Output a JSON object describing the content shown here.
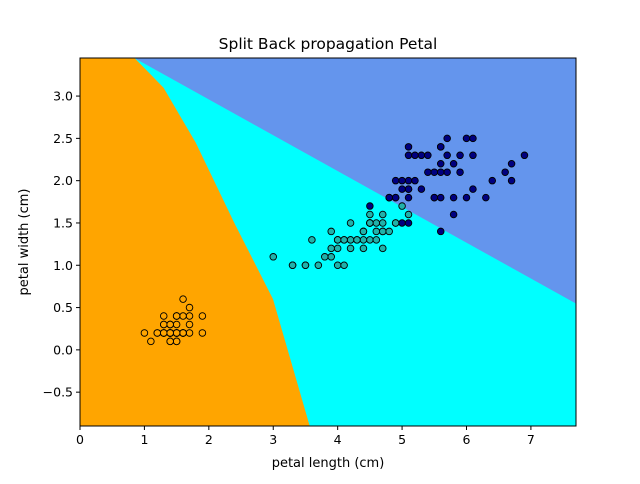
{
  "chart_data": {
    "type": "scatter",
    "title": "Split Back propagation Petal",
    "xlabel": "petal length (cm)",
    "ylabel": "petal width (cm)",
    "xlim": [
      0,
      7.7
    ],
    "ylim": [
      -0.9,
      3.45
    ],
    "xticks": [
      0,
      1,
      2,
      3,
      4,
      5,
      6,
      7
    ],
    "yticks": [
      -0.5,
      0.0,
      0.5,
      1.0,
      1.5,
      2.0,
      2.5,
      3.0
    ],
    "xtick_labels": [
      "0",
      "1",
      "2",
      "3",
      "4",
      "5",
      "6",
      "7"
    ],
    "ytick_labels": [
      "−0.5",
      "0.0",
      "0.5",
      "1.0",
      "1.5",
      "2.0",
      "2.5",
      "3.0"
    ],
    "grid": false,
    "regions": [
      {
        "color": "#ffa500",
        "polygon": [
          [
            0,
            3.45
          ],
          [
            0.85,
            3.45
          ],
          [
            1.3,
            3.1
          ],
          [
            1.8,
            2.45
          ],
          [
            2.4,
            1.5
          ],
          [
            3.0,
            0.6
          ],
          [
            3.57,
            -0.9
          ],
          [
            0,
            -0.9
          ]
        ]
      },
      {
        "color": "#00ffff",
        "polygon": [
          [
            0.85,
            3.45
          ],
          [
            1.3,
            3.1
          ],
          [
            1.8,
            2.45
          ],
          [
            2.4,
            1.5
          ],
          [
            3.0,
            0.6
          ],
          [
            3.57,
            -0.9
          ],
          [
            7.7,
            -0.9
          ],
          [
            7.7,
            0.55
          ]
        ]
      },
      {
        "color": "#6495ed",
        "polygon": [
          [
            0.85,
            3.45
          ],
          [
            7.7,
            3.45
          ],
          [
            7.7,
            0.55
          ]
        ]
      }
    ],
    "series": [
      {
        "color": "#ffa500",
        "points": [
          [
            1.4,
            0.2
          ],
          [
            1.4,
            0.2
          ],
          [
            1.3,
            0.2
          ],
          [
            1.5,
            0.2
          ],
          [
            1.4,
            0.2
          ],
          [
            1.7,
            0.4
          ],
          [
            1.4,
            0.3
          ],
          [
            1.5,
            0.2
          ],
          [
            1.4,
            0.2
          ],
          [
            1.5,
            0.1
          ],
          [
            1.5,
            0.2
          ],
          [
            1.6,
            0.2
          ],
          [
            1.4,
            0.1
          ],
          [
            1.1,
            0.1
          ],
          [
            1.2,
            0.2
          ],
          [
            1.5,
            0.4
          ],
          [
            1.3,
            0.4
          ],
          [
            1.4,
            0.3
          ],
          [
            1.7,
            0.3
          ],
          [
            1.5,
            0.3
          ],
          [
            1.7,
            0.2
          ],
          [
            1.5,
            0.4
          ],
          [
            1.0,
            0.2
          ],
          [
            1.7,
            0.5
          ],
          [
            1.9,
            0.2
          ],
          [
            1.6,
            0.2
          ],
          [
            1.6,
            0.4
          ],
          [
            1.5,
            0.2
          ],
          [
            1.4,
            0.2
          ],
          [
            1.6,
            0.2
          ],
          [
            1.6,
            0.2
          ],
          [
            1.5,
            0.4
          ],
          [
            1.5,
            0.1
          ],
          [
            1.4,
            0.2
          ],
          [
            1.5,
            0.2
          ],
          [
            1.2,
            0.2
          ],
          [
            1.3,
            0.2
          ],
          [
            1.4,
            0.1
          ],
          [
            1.3,
            0.2
          ],
          [
            1.5,
            0.2
          ],
          [
            1.3,
            0.3
          ],
          [
            1.3,
            0.3
          ],
          [
            1.3,
            0.2
          ],
          [
            1.6,
            0.6
          ],
          [
            1.9,
            0.4
          ],
          [
            1.4,
            0.3
          ],
          [
            1.6,
            0.2
          ],
          [
            1.4,
            0.2
          ],
          [
            1.5,
            0.2
          ],
          [
            1.4,
            0.2
          ]
        ]
      },
      {
        "color": "#20b2aa",
        "points": [
          [
            4.7,
            1.4
          ],
          [
            4.5,
            1.5
          ],
          [
            4.9,
            1.5
          ],
          [
            4.0,
            1.3
          ],
          [
            4.6,
            1.5
          ],
          [
            4.5,
            1.3
          ],
          [
            4.7,
            1.6
          ],
          [
            3.3,
            1.0
          ],
          [
            4.6,
            1.3
          ],
          [
            3.9,
            1.4
          ],
          [
            3.5,
            1.0
          ],
          [
            4.2,
            1.5
          ],
          [
            4.0,
            1.0
          ],
          [
            4.7,
            1.4
          ],
          [
            3.6,
            1.3
          ],
          [
            4.4,
            1.4
          ],
          [
            4.5,
            1.5
          ],
          [
            4.1,
            1.0
          ],
          [
            4.5,
            1.5
          ],
          [
            3.9,
            1.1
          ],
          [
            4.8,
            1.8
          ],
          [
            4.0,
            1.3
          ],
          [
            4.9,
            1.5
          ],
          [
            4.7,
            1.2
          ],
          [
            4.3,
            1.3
          ],
          [
            4.4,
            1.4
          ],
          [
            4.8,
            1.4
          ],
          [
            5.0,
            1.7
          ],
          [
            4.5,
            1.5
          ],
          [
            3.5,
            1.0
          ],
          [
            3.8,
            1.1
          ],
          [
            3.7,
            1.0
          ],
          [
            3.9,
            1.2
          ],
          [
            5.1,
            1.6
          ],
          [
            4.5,
            1.5
          ],
          [
            4.5,
            1.6
          ],
          [
            4.7,
            1.5
          ],
          [
            4.4,
            1.3
          ],
          [
            4.1,
            1.3
          ],
          [
            4.0,
            1.3
          ],
          [
            4.4,
            1.2
          ],
          [
            4.6,
            1.4
          ],
          [
            4.0,
            1.2
          ],
          [
            3.3,
            1.0
          ],
          [
            4.2,
            1.3
          ],
          [
            4.2,
            1.2
          ],
          [
            4.2,
            1.3
          ],
          [
            4.3,
            1.3
          ],
          [
            3.0,
            1.1
          ],
          [
            4.1,
            1.3
          ]
        ]
      },
      {
        "color": "#000080",
        "points": [
          [
            6.0,
            2.5
          ],
          [
            5.1,
            1.9
          ],
          [
            5.9,
            2.1
          ],
          [
            5.6,
            1.8
          ],
          [
            5.8,
            2.2
          ],
          [
            6.6,
            2.1
          ],
          [
            4.5,
            1.7
          ],
          [
            6.3,
            1.8
          ],
          [
            5.8,
            1.8
          ],
          [
            6.1,
            2.5
          ],
          [
            5.1,
            2.0
          ],
          [
            5.3,
            1.9
          ],
          [
            5.5,
            2.1
          ],
          [
            5.0,
            2.0
          ],
          [
            5.1,
            2.4
          ],
          [
            5.3,
            2.3
          ],
          [
            5.5,
            1.8
          ],
          [
            6.7,
            2.2
          ],
          [
            6.9,
            2.3
          ],
          [
            5.0,
            1.5
          ],
          [
            5.7,
            2.3
          ],
          [
            4.9,
            2.0
          ],
          [
            6.7,
            2.0
          ],
          [
            4.9,
            1.8
          ],
          [
            5.7,
            2.1
          ],
          [
            6.0,
            1.8
          ],
          [
            4.8,
            1.8
          ],
          [
            4.9,
            1.8
          ],
          [
            5.6,
            2.1
          ],
          [
            5.8,
            1.6
          ],
          [
            6.1,
            1.9
          ],
          [
            6.4,
            2.0
          ],
          [
            5.6,
            2.2
          ],
          [
            5.1,
            1.5
          ],
          [
            5.6,
            1.4
          ],
          [
            6.1,
            2.3
          ],
          [
            5.6,
            2.4
          ],
          [
            5.5,
            1.8
          ],
          [
            4.8,
            1.8
          ],
          [
            5.4,
            2.1
          ],
          [
            5.6,
            2.4
          ],
          [
            5.1,
            2.3
          ],
          [
            5.1,
            1.9
          ],
          [
            5.9,
            2.3
          ],
          [
            5.7,
            2.5
          ],
          [
            5.2,
            2.3
          ],
          [
            5.0,
            1.9
          ],
          [
            5.2,
            2.0
          ],
          [
            5.4,
            2.3
          ],
          [
            5.1,
            1.8
          ]
        ]
      }
    ]
  }
}
